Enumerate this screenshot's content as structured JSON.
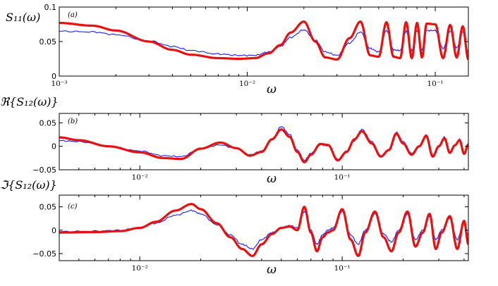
{
  "figure": {
    "panel_colors": {
      "measured": "#1a1aff",
      "model": "#e81010",
      "axes": "#000000"
    }
  },
  "chart_data": [
    {
      "type": "line",
      "panel_label": "(a)",
      "ylabel": "S₁₁(ω)",
      "xlabel": "ω",
      "x_scale": "log",
      "xlim": [
        0.001,
        0.15
      ],
      "ylim": [
        0,
        0.1
      ],
      "y_ticks": [
        0,
        0.05,
        0.1
      ],
      "y_tick_labels": [
        "0",
        "0.05",
        "0.1"
      ],
      "x_ticks": [
        0.001,
        0.01,
        0.1
      ],
      "x_tick_labels": [
        "10⁻³",
        "10⁻²",
        "10⁻¹"
      ],
      "grid": false,
      "series": [
        {
          "role": "measured",
          "color": "#1a1aff",
          "x": [
            0.001,
            0.0015,
            0.002,
            0.003,
            0.004,
            0.005,
            0.007,
            0.009,
            0.011,
            0.013,
            0.015,
            0.017,
            0.02,
            0.023,
            0.026,
            0.03,
            0.035,
            0.04,
            0.045,
            0.05,
            0.055,
            0.06,
            0.065,
            0.07,
            0.075,
            0.08,
            0.085,
            0.09,
            0.1,
            0.11,
            0.12,
            0.13,
            0.14,
            0.15
          ],
          "y": [
            0.065,
            0.064,
            0.06,
            0.051,
            0.043,
            0.037,
            0.032,
            0.03,
            0.03,
            0.035,
            0.043,
            0.056,
            0.067,
            0.052,
            0.035,
            0.03,
            0.048,
            0.064,
            0.04,
            0.035,
            0.066,
            0.038,
            0.037,
            0.065,
            0.037,
            0.066,
            0.038,
            0.066,
            0.066,
            0.04,
            0.065,
            0.041,
            0.064,
            0.035
          ]
        },
        {
          "role": "model",
          "color": "#e81010",
          "x": [
            0.001,
            0.0015,
            0.002,
            0.003,
            0.004,
            0.005,
            0.007,
            0.009,
            0.011,
            0.013,
            0.015,
            0.017,
            0.02,
            0.023,
            0.026,
            0.03,
            0.035,
            0.04,
            0.045,
            0.05,
            0.055,
            0.06,
            0.065,
            0.07,
            0.075,
            0.08,
            0.085,
            0.09,
            0.1,
            0.11,
            0.12,
            0.13,
            0.14,
            0.15
          ],
          "y": [
            0.077,
            0.073,
            0.066,
            0.05,
            0.038,
            0.031,
            0.026,
            0.025,
            0.026,
            0.033,
            0.045,
            0.063,
            0.079,
            0.05,
            0.027,
            0.024,
            0.055,
            0.079,
            0.03,
            0.028,
            0.078,
            0.028,
            0.026,
            0.078,
            0.026,
            0.077,
            0.027,
            0.076,
            0.075,
            0.026,
            0.074,
            0.027,
            0.072,
            0.024
          ]
        }
      ]
    },
    {
      "type": "line",
      "panel_label": "(b)",
      "ylabel": "ℜ{S₁₂(ω)}",
      "xlabel": "ω",
      "x_scale": "log",
      "xlim": [
        0.004,
        0.42
      ],
      "ylim": [
        -0.05,
        0.07
      ],
      "y_ticks": [
        -0.05,
        0,
        0.05
      ],
      "y_tick_labels": [
        "−0.05",
        "0",
        "0.05"
      ],
      "x_ticks": [
        0.01,
        0.1
      ],
      "x_tick_labels": [
        "10⁻²",
        "10⁻¹"
      ],
      "grid": false,
      "series": [
        {
          "role": "measured",
          "color": "#1a1aff",
          "x": [
            0.004,
            0.005,
            0.007,
            0.01,
            0.013,
            0.016,
            0.02,
            0.025,
            0.03,
            0.035,
            0.04,
            0.045,
            0.05,
            0.055,
            0.06,
            0.065,
            0.07,
            0.078,
            0.085,
            0.095,
            0.105,
            0.115,
            0.125,
            0.14,
            0.155,
            0.17,
            0.185,
            0.2,
            0.22,
            0.24,
            0.26,
            0.28,
            0.3,
            0.32,
            0.34,
            0.36,
            0.38,
            0.4,
            0.42
          ],
          "y": [
            0.012,
            0.01,
            0.0,
            -0.01,
            -0.02,
            -0.022,
            -0.005,
            0.003,
            -0.005,
            -0.018,
            -0.01,
            0.015,
            0.042,
            0.025,
            -0.008,
            -0.03,
            -0.015,
            0.003,
            0.001,
            -0.028,
            -0.01,
            0.012,
            0.036,
            0.01,
            -0.02,
            -0.008,
            0.03,
            0.01,
            -0.015,
            0.0,
            0.025,
            -0.02,
            0.0,
            0.02,
            -0.012,
            0.003,
            0.015,
            -0.015,
            0.005
          ]
        },
        {
          "role": "model",
          "color": "#e81010",
          "x": [
            0.004,
            0.005,
            0.007,
            0.01,
            0.013,
            0.016,
            0.02,
            0.025,
            0.03,
            0.035,
            0.04,
            0.045,
            0.05,
            0.055,
            0.06,
            0.065,
            0.07,
            0.078,
            0.085,
            0.095,
            0.105,
            0.115,
            0.125,
            0.14,
            0.155,
            0.17,
            0.185,
            0.2,
            0.22,
            0.24,
            0.26,
            0.28,
            0.3,
            0.32,
            0.34,
            0.36,
            0.38,
            0.4,
            0.42
          ],
          "y": [
            0.019,
            0.013,
            0.0,
            -0.013,
            -0.025,
            -0.027,
            -0.005,
            0.008,
            -0.004,
            -0.02,
            -0.012,
            0.015,
            0.036,
            0.02,
            -0.012,
            -0.034,
            -0.018,
            0.005,
            0.003,
            -0.03,
            -0.012,
            0.015,
            0.032,
            0.006,
            -0.022,
            -0.008,
            0.027,
            0.006,
            -0.018,
            0.0,
            0.022,
            -0.022,
            0.0,
            0.017,
            -0.014,
            0.002,
            0.013,
            -0.016,
            0.004
          ]
        }
      ]
    },
    {
      "type": "line",
      "panel_label": "(c)",
      "ylabel": "ℑ{S₁₂(ω)}",
      "xlabel": "ω",
      "x_scale": "log",
      "xlim": [
        0.004,
        0.42
      ],
      "ylim": [
        -0.065,
        0.075
      ],
      "y_ticks": [
        -0.05,
        0,
        0.05
      ],
      "y_tick_labels": [
        "−0.05",
        "0",
        "0.05"
      ],
      "x_ticks": [
        0.01,
        0.1
      ],
      "x_tick_labels": [
        "10⁻²",
        "10⁻¹"
      ],
      "grid": false,
      "series": [
        {
          "role": "measured",
          "color": "#1a1aff",
          "x": [
            0.004,
            0.006,
            0.008,
            0.01,
            0.012,
            0.015,
            0.018,
            0.02,
            0.024,
            0.028,
            0.032,
            0.036,
            0.04,
            0.045,
            0.05,
            0.055,
            0.06,
            0.065,
            0.07,
            0.075,
            0.08,
            0.085,
            0.09,
            0.1,
            0.11,
            0.12,
            0.13,
            0.145,
            0.16,
            0.175,
            0.19,
            0.21,
            0.23,
            0.25,
            0.27,
            0.29,
            0.31,
            0.34,
            0.37,
            0.4,
            0.42
          ],
          "y": [
            -0.003,
            -0.002,
            0.0,
            0.005,
            0.015,
            0.032,
            0.042,
            0.035,
            0.012,
            -0.01,
            -0.03,
            -0.04,
            -0.02,
            -0.005,
            0.005,
            0.01,
            0.005,
            0.04,
            0.0,
            -0.03,
            -0.01,
            0.0,
            0.005,
            0.04,
            -0.01,
            -0.03,
            0.0,
            0.035,
            -0.008,
            -0.025,
            0.0,
            0.035,
            -0.02,
            0.0,
            0.03,
            -0.02,
            0.0,
            0.025,
            -0.02,
            0.02,
            -0.01
          ]
        },
        {
          "role": "model",
          "color": "#e81010",
          "x": [
            0.004,
            0.006,
            0.008,
            0.01,
            0.012,
            0.015,
            0.018,
            0.02,
            0.024,
            0.028,
            0.032,
            0.036,
            0.04,
            0.045,
            0.05,
            0.055,
            0.06,
            0.065,
            0.07,
            0.075,
            0.08,
            0.085,
            0.09,
            0.1,
            0.11,
            0.12,
            0.13,
            0.145,
            0.16,
            0.175,
            0.19,
            0.21,
            0.23,
            0.25,
            0.27,
            0.29,
            0.31,
            0.34,
            0.37,
            0.4,
            0.42
          ],
          "y": [
            -0.005,
            -0.004,
            -0.002,
            0.005,
            0.018,
            0.042,
            0.056,
            0.045,
            0.015,
            -0.015,
            -0.04,
            -0.055,
            -0.03,
            -0.008,
            0.005,
            0.008,
            0.0,
            0.05,
            -0.005,
            -0.045,
            -0.015,
            -0.005,
            0.0,
            0.045,
            -0.02,
            -0.055,
            -0.005,
            0.04,
            -0.015,
            -0.045,
            -0.005,
            0.04,
            -0.035,
            -0.005,
            0.035,
            -0.04,
            -0.005,
            0.03,
            -0.04,
            0.02,
            -0.03
          ]
        }
      ]
    }
  ]
}
